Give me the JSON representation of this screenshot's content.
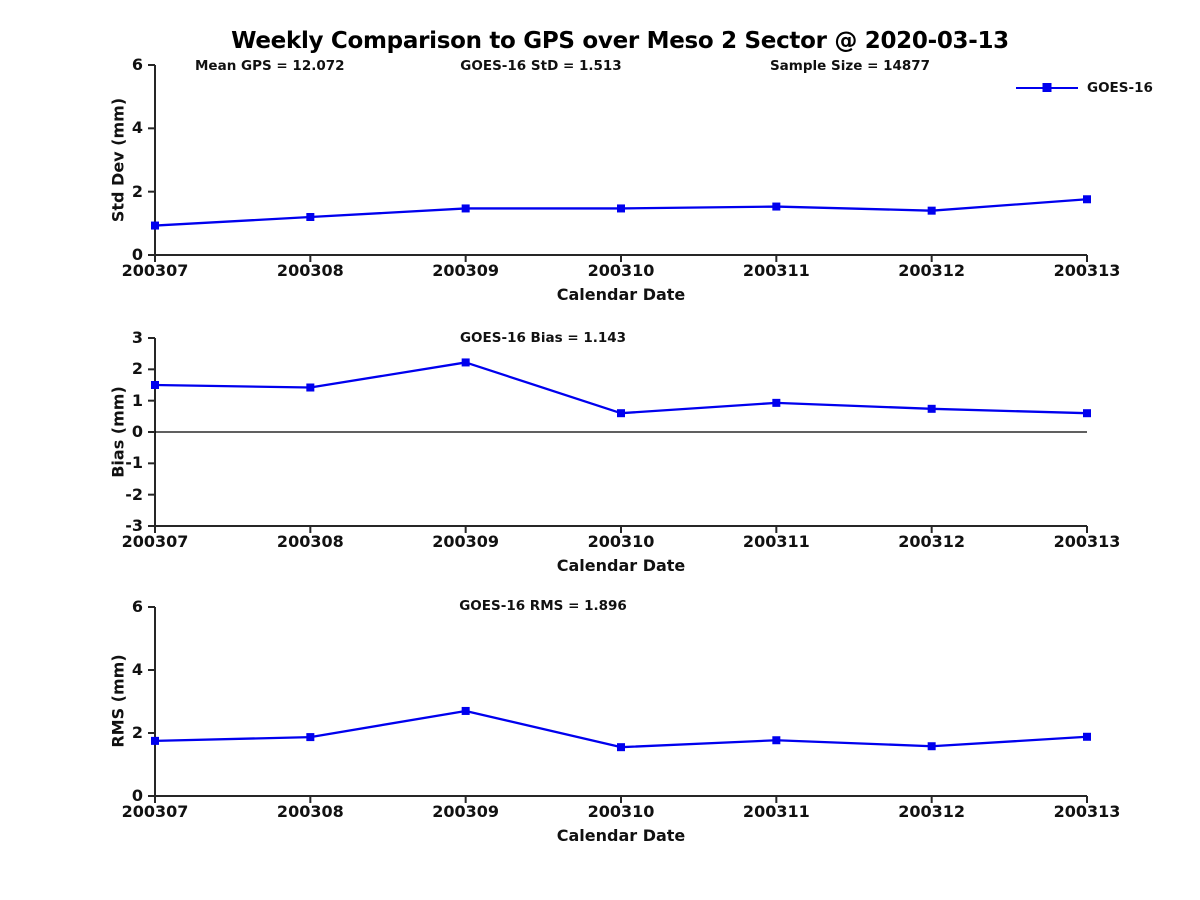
{
  "title": "Weekly Comparison to GPS over Meso 2 Sector @ 2020-03-13",
  "annotations": {
    "mean_gps": "Mean GPS = 12.072",
    "goes16_std": "GOES-16 StD = 1.513",
    "sample_size": "Sample Size = 14877"
  },
  "legend": {
    "label": "GOES-16",
    "marker": "square"
  },
  "colors": {
    "series": "#0000ee",
    "axis": "#262626",
    "text": "#111111",
    "zero_line": "#000000"
  },
  "chart_data": [
    {
      "type": "line",
      "title": "",
      "ylabel": "Std Dev (mm)",
      "xlabel": "Calendar Date",
      "categories": [
        "200307",
        "200308",
        "200309",
        "200310",
        "200311",
        "200312",
        "200313"
      ],
      "yticks": [
        0,
        2,
        4,
        6
      ],
      "ylim": [
        0,
        6
      ],
      "grid": false,
      "zero_line": false,
      "legend_position": "upper right outside",
      "series": [
        {
          "name": "GOES-16",
          "values": [
            0.93,
            1.2,
            1.47,
            1.47,
            1.53,
            1.4,
            1.76
          ]
        }
      ]
    },
    {
      "type": "line",
      "title": "GOES-16 Bias  = 1.143",
      "ylabel": "Bias (mm)",
      "xlabel": "Calendar Date",
      "categories": [
        "200307",
        "200308",
        "200309",
        "200310",
        "200311",
        "200312",
        "200313"
      ],
      "yticks": [
        -3,
        -2,
        -1,
        0,
        1,
        2,
        3
      ],
      "ylim": [
        -3,
        3
      ],
      "grid": false,
      "zero_line": true,
      "series": [
        {
          "name": "GOES-16",
          "values": [
            1.5,
            1.42,
            2.22,
            0.6,
            0.93,
            0.74,
            0.6
          ]
        }
      ]
    },
    {
      "type": "line",
      "title": "GOES-16 RMS = 1.896",
      "ylabel": "RMS (mm)",
      "xlabel": "Calendar Date",
      "categories": [
        "200307",
        "200308",
        "200309",
        "200310",
        "200311",
        "200312",
        "200313"
      ],
      "yticks": [
        0,
        2,
        4,
        6
      ],
      "ylim": [
        0,
        6
      ],
      "grid": false,
      "zero_line": false,
      "series": [
        {
          "name": "GOES-16",
          "values": [
            1.75,
            1.87,
            2.7,
            1.55,
            1.77,
            1.58,
            1.88
          ]
        }
      ]
    }
  ]
}
